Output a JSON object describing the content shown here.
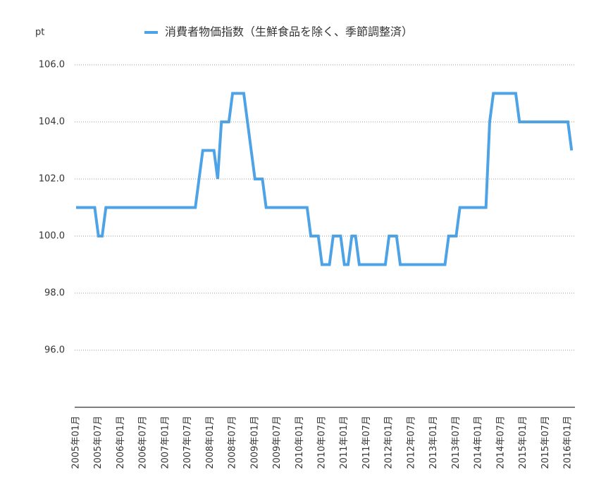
{
  "chart_data": {
    "type": "line",
    "y_label": "pt",
    "series": [
      {
        "name": "消費者物価指数（生鮮食品を除く、季節調整済）",
        "color": "#4da3e6",
        "values": [
          101,
          101,
          101,
          101,
          101,
          101,
          100,
          100,
          101,
          101,
          101,
          101,
          101,
          101,
          101,
          101,
          101,
          101,
          101,
          101,
          101,
          101,
          101,
          101,
          101,
          101,
          101,
          101,
          101,
          101,
          101,
          101,
          101,
          102,
          103,
          103,
          103,
          103,
          102,
          104,
          104,
          104,
          105,
          105,
          105,
          105,
          104,
          103,
          102,
          102,
          102,
          101,
          101,
          101,
          101,
          101,
          101,
          101,
          101,
          101,
          101,
          101,
          101,
          100,
          100,
          100,
          99,
          99,
          99,
          100,
          100,
          100,
          99,
          99,
          100,
          100,
          99,
          99,
          99,
          99,
          99,
          99,
          99,
          99,
          100,
          100,
          100,
          99,
          99,
          99,
          99,
          99,
          99,
          99,
          99,
          99,
          99,
          99,
          99,
          99,
          100,
          100,
          100,
          101,
          101,
          101,
          101,
          101,
          101,
          101,
          101,
          104,
          105,
          105,
          105,
          105,
          105,
          105,
          105,
          104,
          104,
          104,
          104,
          104,
          104,
          104,
          104,
          104,
          104,
          104,
          104,
          104,
          104,
          103
        ]
      }
    ],
    "categories": [
      "2005年01月",
      null,
      null,
      null,
      null,
      null,
      "2005年07月",
      null,
      null,
      null,
      null,
      null,
      "2006年01月",
      null,
      null,
      null,
      null,
      null,
      "2006年07月",
      null,
      null,
      null,
      null,
      null,
      "2007年01月",
      null,
      null,
      null,
      null,
      null,
      "2007年07月",
      null,
      null,
      null,
      null,
      null,
      "2008年01月",
      null,
      null,
      null,
      null,
      null,
      "2008年07月",
      null,
      null,
      null,
      null,
      null,
      "2009年01月",
      null,
      null,
      null,
      null,
      null,
      "2009年07月",
      null,
      null,
      null,
      null,
      null,
      "2010年01月",
      null,
      null,
      null,
      null,
      null,
      "2010年07月",
      null,
      null,
      null,
      null,
      null,
      "2011年01月",
      null,
      null,
      null,
      null,
      null,
      "2011年07月",
      null,
      null,
      null,
      null,
      null,
      "2012年01月",
      null,
      null,
      null,
      null,
      null,
      "2012年07月",
      null,
      null,
      null,
      null,
      null,
      "2013年01月",
      null,
      null,
      null,
      null,
      null,
      "2013年07月",
      null,
      null,
      null,
      null,
      null,
      "2014年01月",
      null,
      null,
      null,
      null,
      null,
      "2014年07月",
      null,
      null,
      null,
      null,
      null,
      "2015年01月",
      null,
      null,
      null,
      null,
      null,
      "2015年07月",
      null,
      null,
      null,
      null,
      null,
      "2016年01月",
      null
    ],
    "ylim": [
      94,
      106
    ],
    "yticks": [
      {
        "value": 96,
        "label": "96.0"
      },
      {
        "value": 98,
        "label": "98.0"
      },
      {
        "value": 100,
        "label": "100.0"
      },
      {
        "value": 102,
        "label": "102.0"
      },
      {
        "value": 104,
        "label": "104.0"
      },
      {
        "value": 106,
        "label": "106.0"
      }
    ],
    "grid": true,
    "legend": "top"
  }
}
